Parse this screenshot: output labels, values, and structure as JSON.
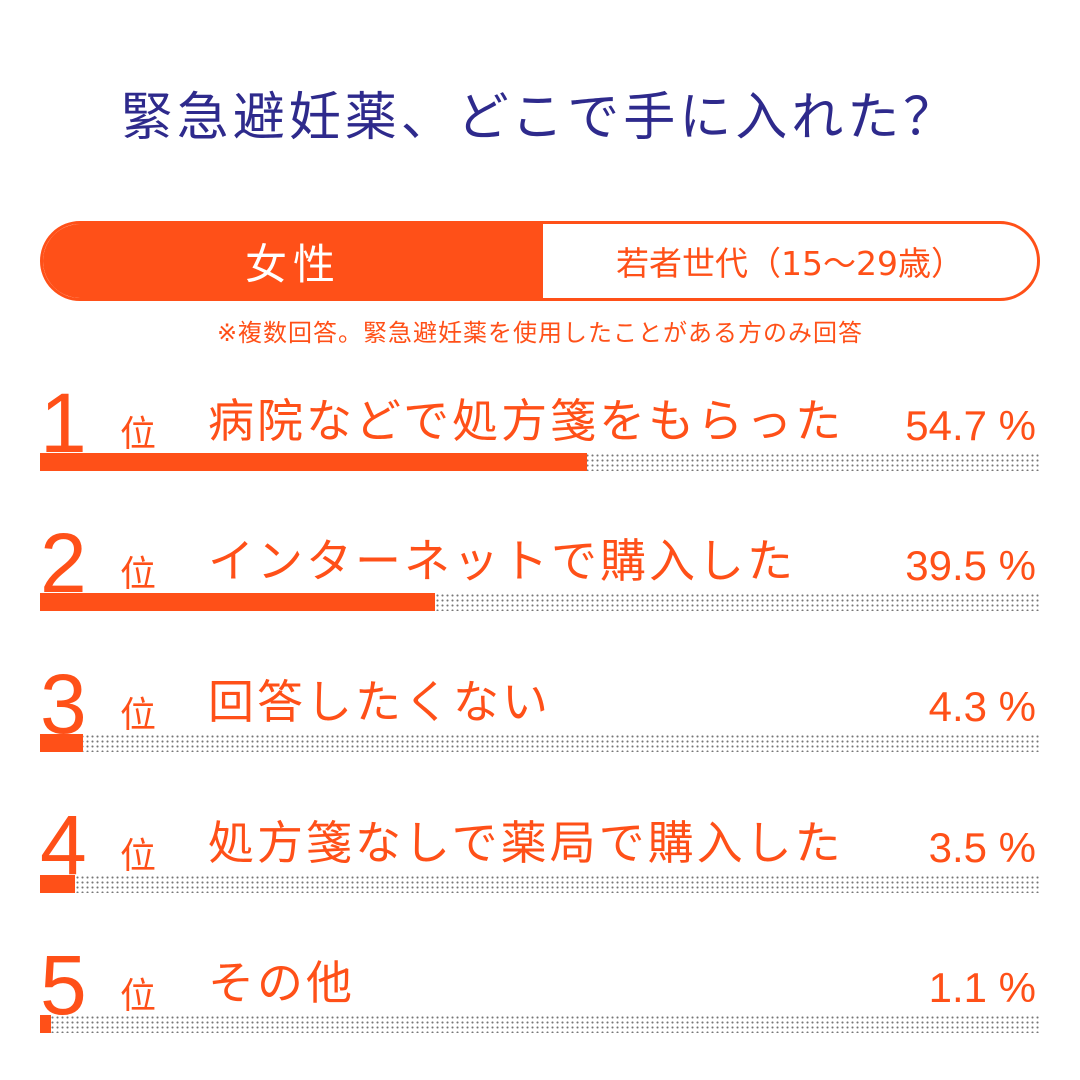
{
  "title": "緊急避妊薬、どこで手に入れた？",
  "tab": {
    "gender": "女性",
    "age": "若者世代（15〜29歳）"
  },
  "note": "※複数回答。緊急避妊薬を使用したことがある方のみ回答",
  "colors": {
    "accent": "#ff5018",
    "title": "#2e2a8c"
  },
  "chart_data": {
    "type": "bar",
    "orientation": "horizontal",
    "unit": "%",
    "xlim": [
      0,
      100
    ],
    "categories": [
      "病院などで処方箋をもらった",
      "インターネットで購入した",
      "回答したくない",
      "処方箋なしで薬局で購入した",
      "その他"
    ],
    "values": [
      54.7,
      39.5,
      4.3,
      3.5,
      1.1
    ],
    "ranks": [
      {
        "num": "1",
        "suffix": "位",
        "label": "病院などで処方箋をもらった",
        "value": 54.7,
        "display": "54.7 %"
      },
      {
        "num": "2",
        "suffix": "位",
        "label": "インターネットで購入した",
        "value": 39.5,
        "display": "39.5 %"
      },
      {
        "num": "3",
        "suffix": "位",
        "label": "回答したくない",
        "value": 4.3,
        "display": "4.3 %"
      },
      {
        "num": "4",
        "suffix": "位",
        "label": "処方箋なしで薬局で購入した",
        "value": 3.5,
        "display": "3.5 %"
      },
      {
        "num": "5",
        "suffix": "位",
        "label": "その他",
        "value": 1.1,
        "display": "1.1 %"
      }
    ]
  }
}
